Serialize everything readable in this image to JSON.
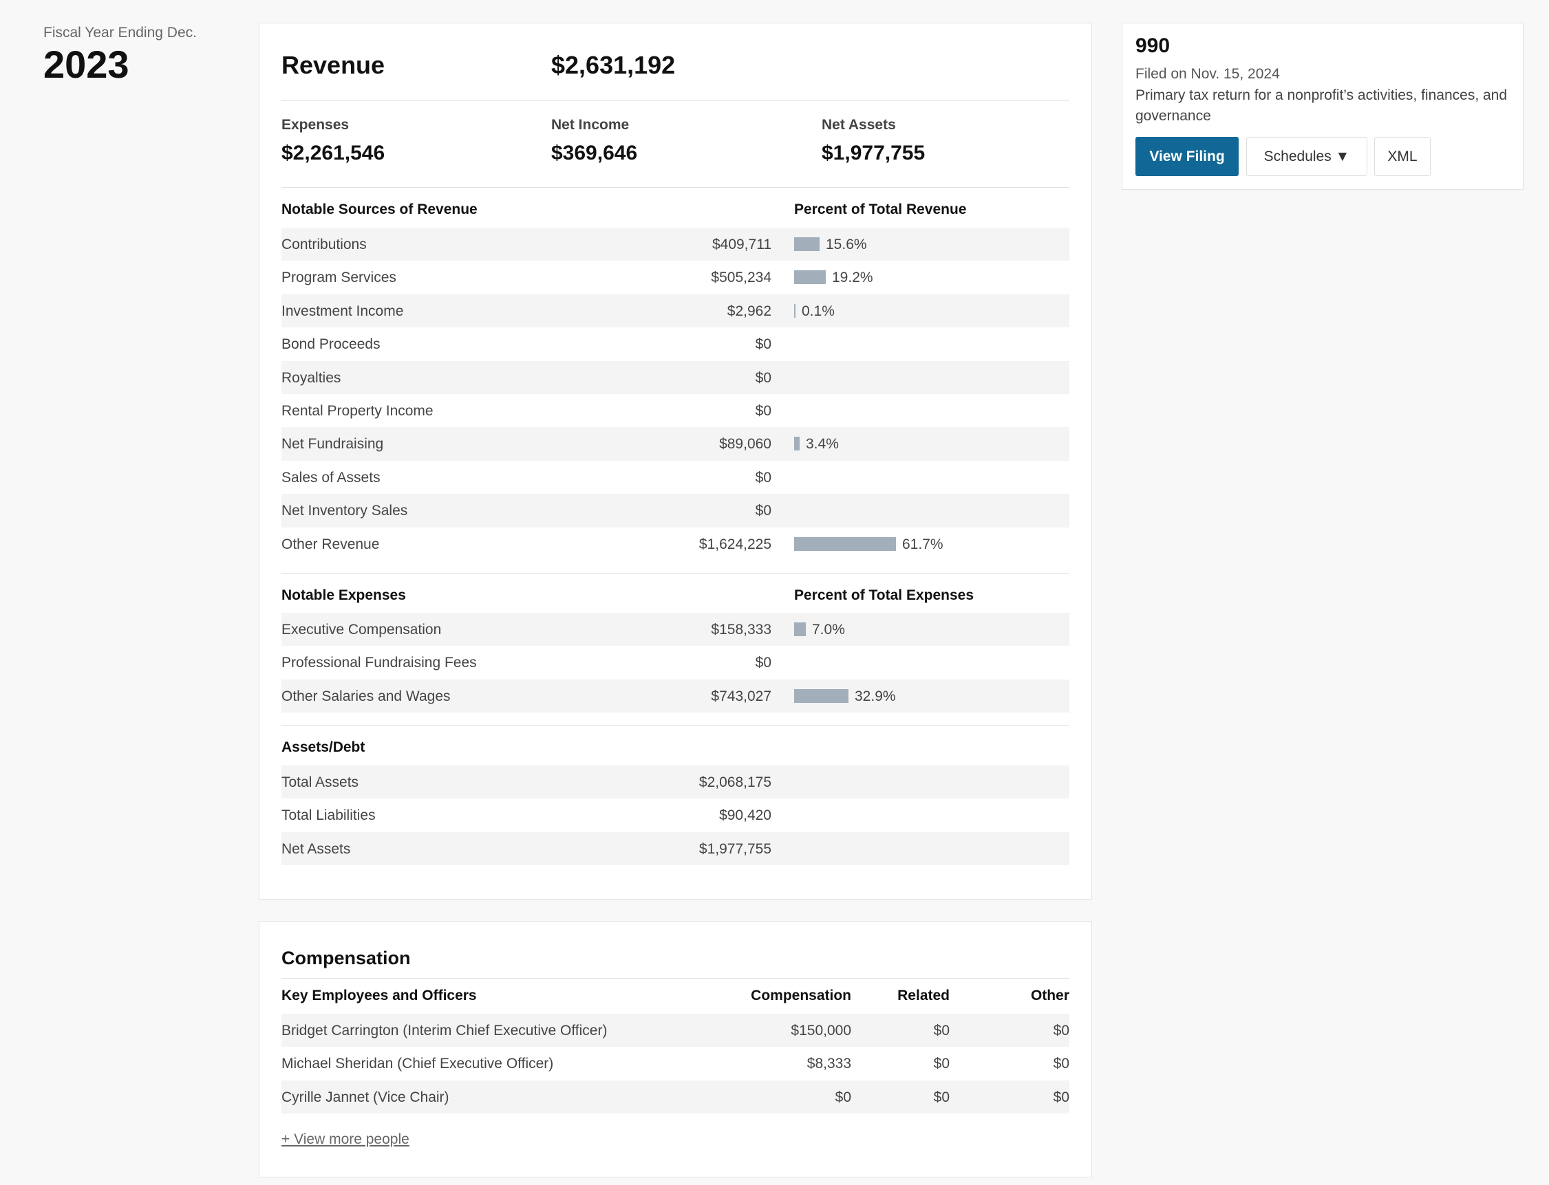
{
  "fiscal": {
    "label": "Fiscal Year Ending Dec.",
    "year": "2023"
  },
  "summary": {
    "revenue_label": "Revenue",
    "revenue_value": "$2,631,192",
    "expenses_label": "Expenses",
    "expenses_value": "$2,261,546",
    "net_income_label": "Net Income",
    "net_income_value": "$369,646",
    "net_assets_label": "Net Assets",
    "net_assets_value": "$1,977,755"
  },
  "revenue_sources": {
    "title": "Notable Sources of Revenue",
    "pct_title": "Percent of Total Revenue",
    "rows": [
      {
        "name": "Contributions",
        "amount": "$409,711",
        "pct": 15.6,
        "pct_label": "15.6%"
      },
      {
        "name": "Program Services",
        "amount": "$505,234",
        "pct": 19.2,
        "pct_label": "19.2%"
      },
      {
        "name": "Investment Income",
        "amount": "$2,962",
        "pct": 0.1,
        "pct_label": "0.1%"
      },
      {
        "name": "Bond Proceeds",
        "amount": "$0",
        "pct": 0,
        "pct_label": ""
      },
      {
        "name": "Royalties",
        "amount": "$0",
        "pct": 0,
        "pct_label": ""
      },
      {
        "name": "Rental Property Income",
        "amount": "$0",
        "pct": 0,
        "pct_label": ""
      },
      {
        "name": "Net Fundraising",
        "amount": "$89,060",
        "pct": 3.4,
        "pct_label": "3.4%"
      },
      {
        "name": "Sales of Assets",
        "amount": "$0",
        "pct": 0,
        "pct_label": ""
      },
      {
        "name": "Net Inventory Sales",
        "amount": "$0",
        "pct": 0,
        "pct_label": ""
      },
      {
        "name": "Other Revenue",
        "amount": "$1,624,225",
        "pct": 61.7,
        "pct_label": "61.7%"
      }
    ]
  },
  "expenses": {
    "title": "Notable Expenses",
    "pct_title": "Percent of Total Expenses",
    "rows": [
      {
        "name": "Executive Compensation",
        "amount": "$158,333",
        "pct": 7.0,
        "pct_label": "7.0%"
      },
      {
        "name": "Professional Fundraising Fees",
        "amount": "$0",
        "pct": 0,
        "pct_label": ""
      },
      {
        "name": "Other Salaries and Wages",
        "amount": "$743,027",
        "pct": 32.9,
        "pct_label": "32.9%"
      }
    ]
  },
  "assets": {
    "title": "Assets/Debt",
    "rows": [
      {
        "name": "Total Assets",
        "amount": "$2,068,175"
      },
      {
        "name": "Total Liabilities",
        "amount": "$90,420"
      },
      {
        "name": "Net Assets",
        "amount": "$1,977,755"
      }
    ]
  },
  "compensation": {
    "title": "Compensation",
    "headers": [
      "Key Employees and Officers",
      "Compensation",
      "Related",
      "Other"
    ],
    "rows": [
      {
        "name": "Bridget Carrington (Interim Chief Executive Officer)",
        "comp": "$150,000",
        "related": "$0",
        "other": "$0"
      },
      {
        "name": "Michael Sheridan (Chief Executive Officer)",
        "comp": "$8,333",
        "related": "$0",
        "other": "$0"
      },
      {
        "name": "Cyrille Jannet (Vice Chair)",
        "comp": "$0",
        "related": "$0",
        "other": "$0"
      }
    ],
    "view_more": "+ View more people"
  },
  "filing": {
    "form": "990",
    "filed": "Filed on Nov. 15, 2024",
    "description": "Primary tax return for a nonprofit’s activities, finances, and governance",
    "view_label": "View Filing",
    "schedules_label": "Schedules ▼",
    "xml_label": "XML"
  },
  "colors": {
    "bar": "#a2afba",
    "primary_button": "#116896"
  }
}
